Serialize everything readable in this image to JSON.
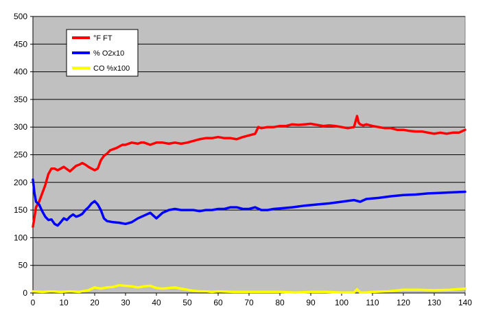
{
  "chart_data": {
    "type": "line",
    "title": "",
    "xlabel": "",
    "ylabel": "",
    "xlim": [
      0,
      140
    ],
    "ylim": [
      0,
      500
    ],
    "x_ticks": [
      0,
      10,
      20,
      30,
      40,
      50,
      60,
      70,
      80,
      90,
      100,
      110,
      120,
      130,
      140
    ],
    "y_ticks": [
      0,
      50,
      100,
      150,
      200,
      250,
      300,
      350,
      400,
      450,
      500
    ],
    "grid": "horizontal",
    "legend_position": "top-left",
    "plot_background": "#c0c0c0",
    "series": [
      {
        "name": "°F FT",
        "color": "#ff0000",
        "x": [
          0,
          1,
          2,
          3,
          4,
          5,
          6,
          7,
          8,
          9,
          10,
          12,
          14,
          15,
          16,
          17,
          18,
          19,
          20,
          21,
          22,
          23,
          24,
          25,
          26,
          27,
          28,
          29,
          30,
          32,
          34,
          35,
          36,
          38,
          40,
          42,
          44,
          46,
          48,
          50,
          52,
          54,
          56,
          58,
          60,
          62,
          64,
          66,
          68,
          70,
          72,
          73,
          74,
          76,
          78,
          80,
          82,
          84,
          86,
          88,
          90,
          92,
          94,
          96,
          98,
          100,
          102,
          104,
          105,
          105.5,
          106,
          107,
          108,
          110,
          112,
          114,
          116,
          118,
          120,
          122,
          124,
          126,
          128,
          130,
          132,
          134,
          136,
          138,
          140
        ],
        "values": [
          120,
          155,
          165,
          180,
          195,
          215,
          225,
          225,
          222,
          225,
          228,
          220,
          230,
          232,
          235,
          232,
          228,
          225,
          222,
          225,
          240,
          248,
          252,
          258,
          260,
          262,
          265,
          268,
          268,
          272,
          270,
          272,
          272,
          268,
          272,
          272,
          270,
          272,
          270,
          272,
          275,
          278,
          280,
          280,
          282,
          280,
          280,
          278,
          282,
          285,
          288,
          300,
          298,
          300,
          300,
          302,
          302,
          305,
          304,
          305,
          306,
          304,
          302,
          303,
          302,
          300,
          298,
          300,
          320,
          308,
          305,
          303,
          305,
          302,
          300,
          298,
          298,
          295,
          295,
          293,
          292,
          292,
          290,
          288,
          290,
          288,
          290,
          290,
          295
        ]
      },
      {
        "name": "% O2x10",
        "color": "#0000ff",
        "x": [
          0,
          0.5,
          1,
          2,
          3,
          4,
          5,
          6,
          7,
          8,
          9,
          10,
          11,
          12,
          13,
          14,
          15,
          16,
          17,
          18,
          19,
          20,
          21,
          22,
          23,
          24,
          26,
          28,
          30,
          32,
          34,
          36,
          38,
          40,
          42,
          44,
          46,
          48,
          50,
          52,
          54,
          56,
          58,
          60,
          62,
          64,
          66,
          68,
          70,
          72,
          74,
          76,
          78,
          80,
          84,
          88,
          92,
          96,
          100,
          104,
          106,
          108,
          112,
          116,
          120,
          124,
          128,
          132,
          136,
          140
        ],
        "values": [
          205,
          180,
          165,
          160,
          148,
          138,
          132,
          133,
          125,
          122,
          128,
          135,
          132,
          138,
          142,
          138,
          140,
          143,
          150,
          155,
          162,
          166,
          160,
          150,
          135,
          130,
          128,
          127,
          125,
          128,
          135,
          140,
          145,
          135,
          145,
          150,
          152,
          150,
          150,
          150,
          148,
          150,
          150,
          152,
          152,
          155,
          155,
          152,
          152,
          155,
          150,
          150,
          152,
          153,
          155,
          158,
          160,
          162,
          165,
          168,
          165,
          170,
          172,
          175,
          177,
          178,
          180,
          181,
          182,
          183
        ]
      },
      {
        "name": "CO %x100",
        "color": "#ffff00",
        "x": [
          0,
          3,
          6,
          9,
          12,
          15,
          18,
          20,
          22,
          24,
          26,
          28,
          30,
          32,
          34,
          36,
          38,
          40,
          42,
          44,
          46,
          48,
          50,
          52,
          54,
          56,
          58,
          60,
          65,
          70,
          75,
          80,
          85,
          90,
          95,
          100,
          104,
          105,
          106,
          108,
          110,
          115,
          120,
          125,
          130,
          135,
          140
        ],
        "values": [
          3,
          2,
          3,
          2,
          3,
          2,
          5,
          10,
          8,
          10,
          11,
          14,
          13,
          12,
          10,
          12,
          13,
          9,
          8,
          9,
          10,
          8,
          6,
          4,
          3,
          3,
          2,
          3,
          2,
          2,
          2,
          2,
          1,
          2,
          2,
          1,
          1,
          7,
          1,
          1,
          2,
          3,
          6,
          6,
          5,
          6,
          8
        ]
      }
    ]
  }
}
